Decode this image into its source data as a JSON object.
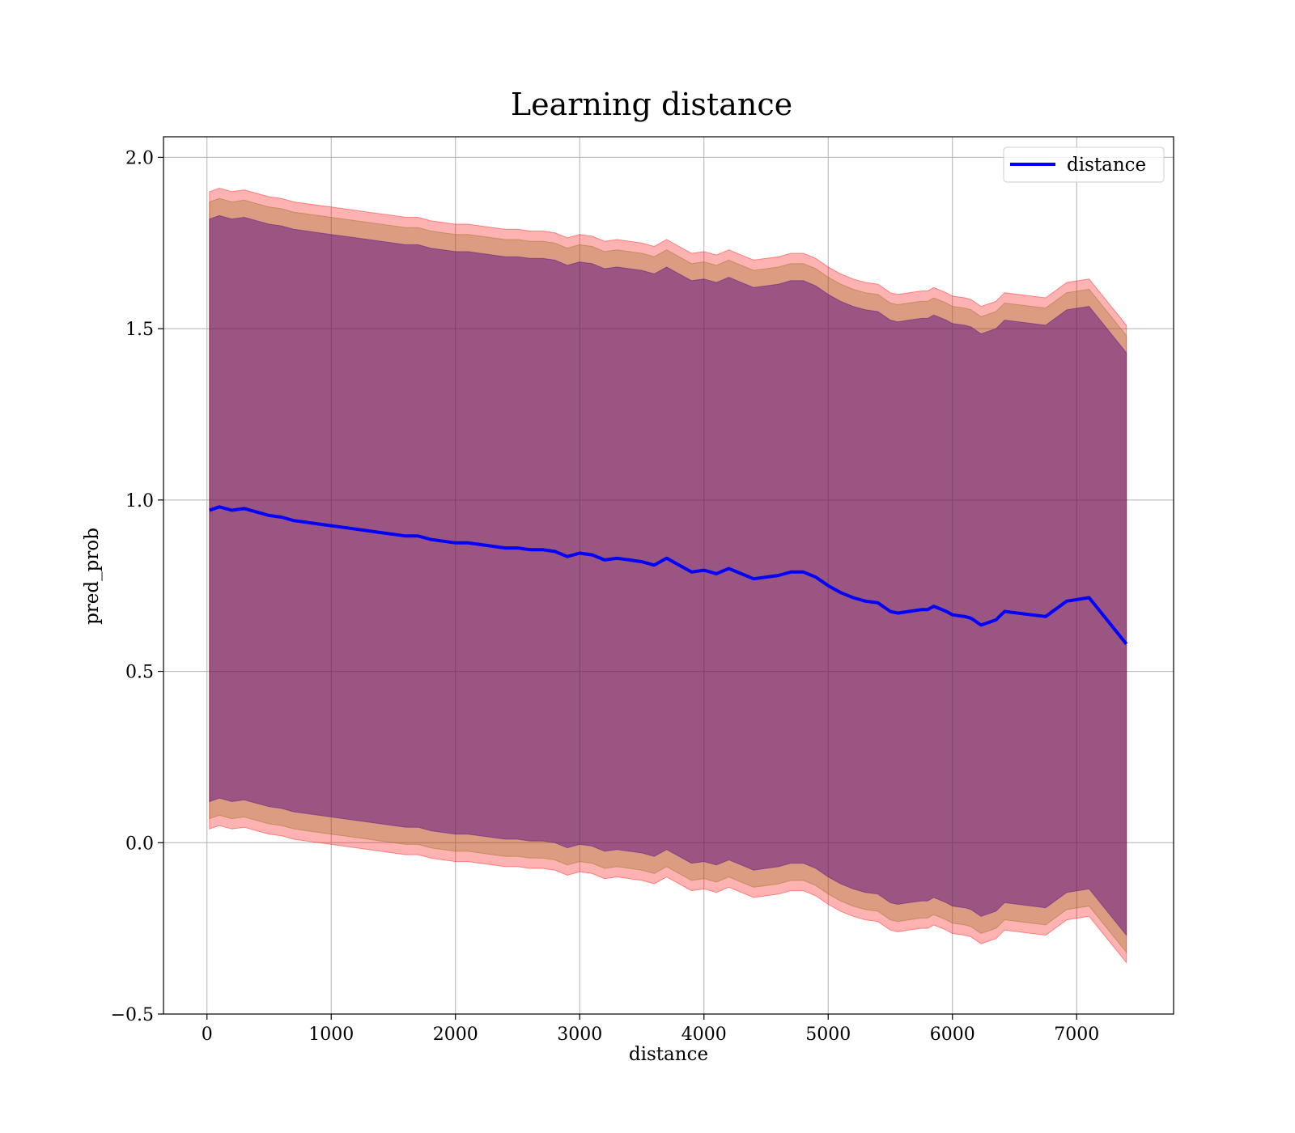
{
  "chart_data": {
    "type": "line",
    "title": "Learning distance",
    "xlabel": "distance",
    "ylabel": "pred_prob",
    "xlim": [
      -350,
      7780
    ],
    "ylim": [
      -0.5,
      2.06
    ],
    "x_ticks": [
      0,
      1000,
      2000,
      3000,
      4000,
      5000,
      6000,
      7000
    ],
    "x_tick_labels": [
      "0",
      "1000",
      "2000",
      "3000",
      "4000",
      "5000",
      "6000",
      "7000"
    ],
    "y_ticks": [
      -0.5,
      0.0,
      0.5,
      1.0,
      1.5,
      2.0
    ],
    "y_tick_labels": [
      "−0.5",
      "0.0",
      "0.5",
      "1.0",
      "1.5",
      "2.0"
    ],
    "grid": true,
    "legend": {
      "position": "top-right",
      "entries": [
        "distance"
      ]
    },
    "colors": {
      "line": "#0000ff",
      "band_outer": "#ff0000",
      "band_mid": "#8b6914",
      "band_inner": "#4b0082"
    },
    "series": [
      {
        "name": "distance",
        "x": [
          20,
          100,
          200,
          300,
          400,
          500,
          600,
          700,
          800,
          900,
          1000,
          1100,
          1200,
          1300,
          1400,
          1500,
          1600,
          1700,
          1800,
          1900,
          2000,
          2100,
          2200,
          2300,
          2400,
          2500,
          2600,
          2700,
          2800,
          2900,
          3000,
          3100,
          3200,
          3300,
          3400,
          3500,
          3600,
          3700,
          3800,
          3900,
          4000,
          4100,
          4200,
          4300,
          4400,
          4500,
          4600,
          4700,
          4800,
          4900,
          5000,
          5100,
          5200,
          5300,
          5400,
          5500,
          5560,
          5650,
          5750,
          5800,
          5850,
          5950,
          6000,
          6100,
          6150,
          6230,
          6350,
          6420,
          6750,
          6920,
          7100,
          7400
        ],
        "y": [
          0.97,
          0.98,
          0.97,
          0.975,
          0.965,
          0.955,
          0.95,
          0.94,
          0.935,
          0.93,
          0.925,
          0.92,
          0.915,
          0.91,
          0.905,
          0.9,
          0.895,
          0.895,
          0.885,
          0.88,
          0.875,
          0.875,
          0.87,
          0.865,
          0.86,
          0.86,
          0.855,
          0.855,
          0.85,
          0.835,
          0.845,
          0.84,
          0.825,
          0.83,
          0.825,
          0.82,
          0.81,
          0.83,
          0.81,
          0.79,
          0.795,
          0.785,
          0.8,
          0.785,
          0.77,
          0.775,
          0.78,
          0.79,
          0.79,
          0.775,
          0.75,
          0.73,
          0.715,
          0.705,
          0.7,
          0.675,
          0.67,
          0.675,
          0.68,
          0.68,
          0.69,
          0.675,
          0.665,
          0.66,
          0.655,
          0.635,
          0.65,
          0.675,
          0.66,
          0.705,
          0.715,
          0.58
        ]
      }
    ],
    "bands": [
      {
        "name": "outer",
        "half_width": 0.93,
        "opacity": 0.3
      },
      {
        "name": "middle",
        "half_width": 0.9,
        "opacity": 0.3
      },
      {
        "name": "inner",
        "half_width": 0.85,
        "opacity": 0.45
      }
    ]
  }
}
